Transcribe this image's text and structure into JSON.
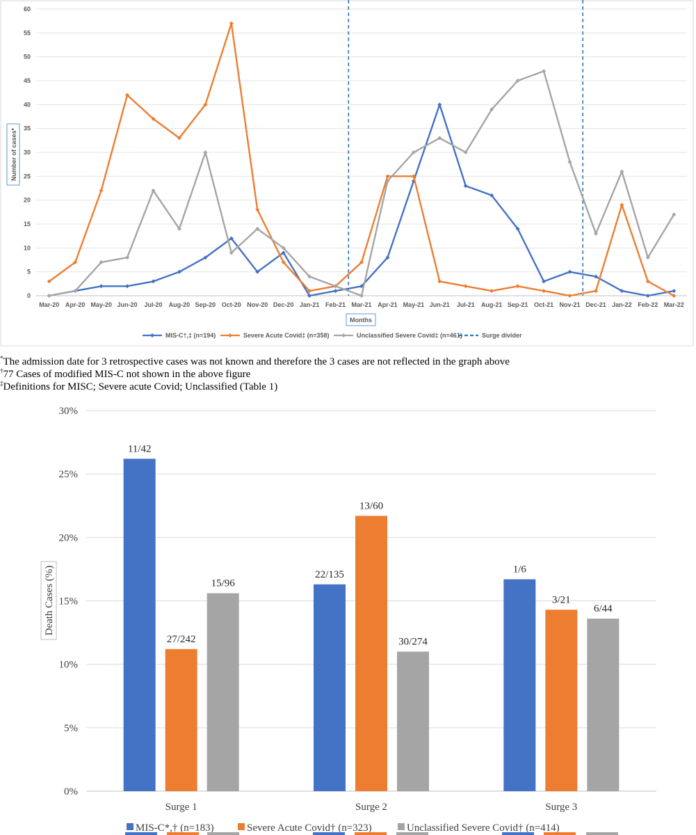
{
  "chart_data": [
    {
      "type": "line",
      "title": "",
      "xlabel": "Months",
      "ylabel": "Number of cases*",
      "ylim": [
        0,
        60
      ],
      "yticks": [
        0,
        5,
        10,
        15,
        20,
        25,
        30,
        35,
        40,
        45,
        50,
        55,
        60
      ],
      "grid": true,
      "legend_position": "bottom",
      "categories": [
        "Mar-20",
        "Apr-20",
        "May-20",
        "Jun-20",
        "Jul-20",
        "Aug-20",
        "Sep-20",
        "Oct-20",
        "Nov-20",
        "Dec-20",
        "Jan-21",
        "Feb-21",
        "Mar-21",
        "Apr-21",
        "May-21",
        "Jun-21",
        "Jul-21",
        "Aug-21",
        "Sep-21",
        "Oct-21",
        "Nov-21",
        "Dec-21",
        "Jan-22",
        "Feb-22",
        "Mar-22"
      ],
      "series": [
        {
          "name": "MIS-C†,‡ (n=194)",
          "color": "#4472C4",
          "values": [
            0,
            1,
            2,
            2,
            3,
            5,
            8,
            12,
            5,
            9,
            0,
            1,
            2,
            8,
            24,
            40,
            23,
            21,
            14,
            3,
            5,
            4,
            1,
            0,
            1
          ]
        },
        {
          "name": "Severe Acute Covid‡ (n=358)",
          "color": "#ED7D31",
          "values": [
            3,
            7,
            22,
            42,
            37,
            33,
            40,
            57,
            18,
            7,
            1,
            2,
            7,
            25,
            25,
            3,
            2,
            1,
            2,
            1,
            0,
            1,
            19,
            3,
            0
          ]
        },
        {
          "name": "Unclassified Severe Covid‡ (n=461)",
          "color": "#A5A5A5",
          "values": [
            0,
            1,
            7,
            8,
            22,
            14,
            30,
            9,
            14,
            10,
            4,
            2,
            0,
            24,
            30,
            33,
            30,
            39,
            45,
            47,
            28,
            13,
            26,
            8,
            17
          ]
        }
      ],
      "divider_name": "Surge divider",
      "divider_color": "#2E75B6",
      "dividers_after_category": [
        "Feb-21",
        "Nov-21"
      ]
    },
    {
      "type": "bar",
      "title": "",
      "xlabel": "",
      "ylabel": "Death Cases (%)",
      "ylim": [
        0,
        30
      ],
      "yticks": [
        "0%",
        "5%",
        "10%",
        "15%",
        "20%",
        "25%",
        "30%"
      ],
      "grid": true,
      "legend_position": "bottom",
      "categories": [
        "Surge 1",
        "Surge 2",
        "Surge 3"
      ],
      "series": [
        {
          "name": "MIS-C*,† (n=183)",
          "color": "#4472C4",
          "values": [
            26.2,
            16.3,
            16.7
          ],
          "labels": [
            "11/42",
            "22/135",
            "1/6"
          ]
        },
        {
          "name": "Severe Acute Covid† (n=323)",
          "color": "#ED7D31",
          "values": [
            11.2,
            21.7,
            14.3
          ],
          "labels": [
            "27/242",
            "13/60",
            "3/21"
          ]
        },
        {
          "name": "Unclassified Severe Covid† (n=414)",
          "color": "#A5A5A5",
          "values": [
            15.6,
            11.0,
            13.6
          ],
          "labels": [
            "15/96",
            "30/274",
            "6/44"
          ]
        }
      ]
    }
  ],
  "notes": [
    {
      "mark": "*",
      "text": "The admission date for 3 retrospective cases was not known and therefore the 3 cases are not reflected in the graph above"
    },
    {
      "mark": "†",
      "text": "77 Cases of modified MIS-C not shown in the above figure"
    },
    {
      "mark": "‡",
      "text": "Definitions for MISC; Severe acute Covid; Unclassified (Table 1)"
    }
  ]
}
